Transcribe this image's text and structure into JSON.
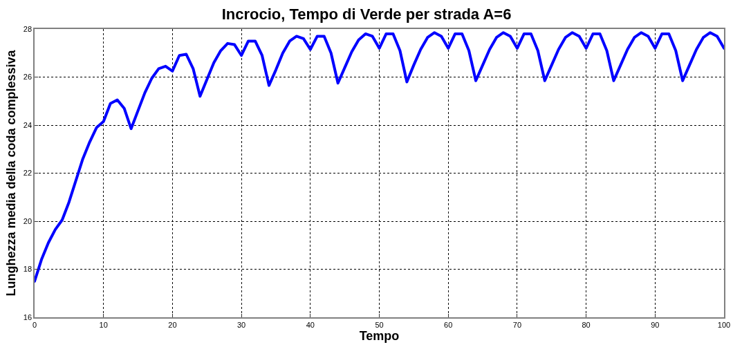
{
  "chart_data": {
    "type": "line",
    "title": "Incrocio, Tempo di Verde per strada A=6",
    "xlabel": "Tempo",
    "ylabel": "Lunghezza media della coda complessiva",
    "x": [
      0,
      1,
      2,
      3,
      4,
      5,
      6,
      7,
      8,
      9,
      10,
      11,
      12,
      13,
      14,
      15,
      16,
      17,
      18,
      19,
      20,
      21,
      22,
      23,
      24,
      25,
      26,
      27,
      28,
      29,
      30,
      31,
      32,
      33,
      34,
      35,
      36,
      37,
      38,
      39,
      40,
      41,
      42,
      43,
      44,
      45,
      46,
      47,
      48,
      49,
      50,
      51,
      52,
      53,
      54,
      55,
      56,
      57,
      58,
      59,
      60,
      61,
      62,
      63,
      64,
      65,
      66,
      67,
      68,
      69,
      70,
      71,
      72,
      73,
      74,
      75,
      76,
      77,
      78,
      79,
      80,
      81,
      82,
      83,
      84,
      85,
      86,
      87,
      88,
      89,
      90,
      91,
      92,
      93,
      94,
      95,
      96,
      97,
      98,
      99,
      100
    ],
    "series": [
      {
        "color": "#0000ff",
        "values": [
          17.5,
          18.4,
          19.1,
          19.65,
          20.05,
          20.8,
          21.7,
          22.6,
          23.3,
          23.9,
          24.15,
          24.9,
          25.05,
          24.7,
          23.85,
          24.6,
          25.35,
          25.95,
          26.35,
          26.45,
          26.25,
          26.9,
          26.95,
          26.35,
          25.2,
          25.9,
          26.6,
          27.1,
          27.4,
          27.35,
          26.9,
          27.5,
          27.5,
          26.9,
          25.65,
          26.3,
          27.0,
          27.5,
          27.7,
          27.6,
          27.15,
          27.7,
          27.7,
          27.0,
          25.75,
          26.4,
          27.05,
          27.55,
          27.8,
          27.7,
          27.2,
          27.8,
          27.8,
          27.1,
          25.8,
          26.5,
          27.15,
          27.65,
          27.85,
          27.7,
          27.2,
          27.8,
          27.8,
          27.1,
          25.85,
          26.5,
          27.15,
          27.65,
          27.85,
          27.7,
          27.2,
          27.8,
          27.8,
          27.1,
          25.85,
          26.5,
          27.15,
          27.65,
          27.85,
          27.7,
          27.2,
          27.8,
          27.8,
          27.1,
          25.85,
          26.5,
          27.15,
          27.65,
          27.85,
          27.7,
          27.2,
          27.8,
          27.8,
          27.1,
          25.85,
          26.5,
          27.15,
          27.65,
          27.85,
          27.7,
          27.2
        ]
      }
    ],
    "xlim": [
      0,
      100
    ],
    "xticks": [
      0,
      10,
      20,
      30,
      40,
      50,
      60,
      70,
      80,
      90,
      100
    ],
    "ylim": [
      16,
      28
    ],
    "yticks": [
      16,
      18,
      20,
      22,
      24,
      26,
      28
    ],
    "grid": true,
    "marker": "none",
    "line_style": "solid"
  }
}
